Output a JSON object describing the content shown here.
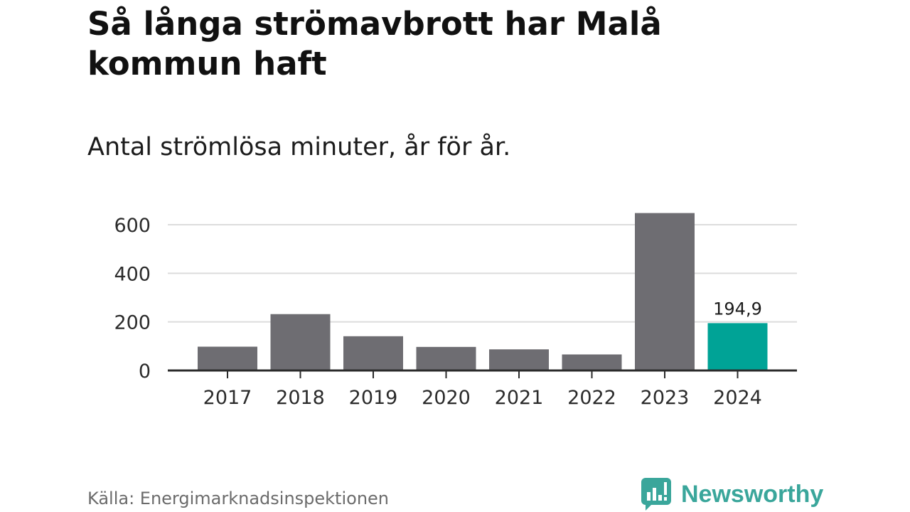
{
  "chart_data": {
    "type": "bar",
    "title": "Så långa strömavbrott har Malå kommun haft",
    "subtitle": "Antal strömlösa minuter, år för år.",
    "xlabel": "",
    "ylabel": "",
    "categories": [
      "2017",
      "2018",
      "2019",
      "2020",
      "2021",
      "2022",
      "2023",
      "2024"
    ],
    "values": [
      98,
      232,
      141,
      97,
      87,
      66,
      648,
      194.9
    ],
    "ylim": [
      0,
      660
    ],
    "yticks": [
      0,
      200,
      400,
      600
    ],
    "grid": true,
    "highlight_index": 7,
    "data_labels": [
      {
        "index": 7,
        "text": "194,9"
      }
    ],
    "colors": {
      "bar": "#6e6d72",
      "highlight": "#00a396",
      "grid": "#dcdcdc",
      "axis": "#2b2b2b"
    }
  },
  "footer": {
    "source": "Källa: Energimarknadsinspektionen",
    "brand": "Newsworthy",
    "brand_icon": "newsworthy-logo-icon"
  }
}
